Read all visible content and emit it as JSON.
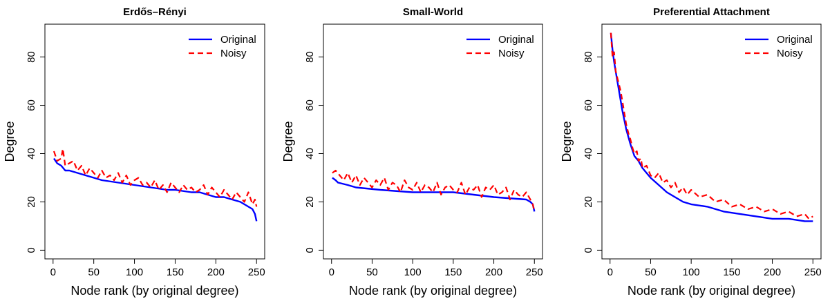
{
  "colors": {
    "original": "#0000ff",
    "noisy": "#ff0000"
  },
  "chart_data": [
    {
      "type": "line",
      "title": "Erdős–Rényi",
      "xlabel": "Node rank (by original degree)",
      "ylabel": "Degree",
      "xlim": [
        0,
        250
      ],
      "ylim": [
        0,
        90
      ],
      "xticks": [
        0,
        50,
        100,
        150,
        200,
        250
      ],
      "yticks": [
        0,
        20,
        40,
        60,
        80
      ],
      "legend_position": "top-right",
      "series": [
        {
          "name": "Original",
          "style": "solid",
          "color": "#0000ff",
          "x": [
            1,
            5,
            10,
            15,
            20,
            30,
            40,
            50,
            60,
            80,
            100,
            120,
            140,
            150,
            170,
            180,
            200,
            210,
            220,
            230,
            240,
            245,
            248,
            250
          ],
          "y": [
            38,
            36,
            35,
            33,
            33,
            32,
            31,
            30,
            29,
            28,
            27,
            26,
            25,
            25,
            24,
            24,
            22,
            22,
            21,
            20,
            18,
            17,
            15,
            12
          ]
        },
        {
          "name": "Noisy",
          "style": "dashed",
          "color": "#ff0000",
          "x": [
            1,
            5,
            10,
            12,
            15,
            20,
            25,
            30,
            35,
            40,
            45,
            50,
            55,
            60,
            65,
            70,
            75,
            80,
            85,
            90,
            95,
            100,
            105,
            110,
            115,
            120,
            125,
            130,
            135,
            140,
            145,
            150,
            155,
            160,
            165,
            170,
            175,
            180,
            185,
            190,
            195,
            200,
            205,
            210,
            215,
            220,
            225,
            230,
            235,
            240,
            245,
            248,
            250
          ],
          "y": [
            41,
            37,
            38,
            42,
            35,
            36,
            37,
            33,
            35,
            31,
            34,
            32,
            30,
            33,
            30,
            31,
            29,
            32,
            28,
            31,
            27,
            29,
            30,
            27,
            28,
            26,
            29,
            25,
            27,
            24,
            28,
            26,
            24,
            27,
            25,
            26,
            24,
            25,
            27,
            23,
            26,
            24,
            22,
            25,
            23,
            21,
            24,
            22,
            20,
            24,
            19,
            21,
            18
          ]
        }
      ]
    },
    {
      "type": "line",
      "title": "Small-World",
      "xlabel": "Node rank (by original degree)",
      "ylabel": "Degree",
      "xlim": [
        0,
        250
      ],
      "ylim": [
        0,
        90
      ],
      "xticks": [
        0,
        50,
        100,
        150,
        200,
        250
      ],
      "yticks": [
        0,
        20,
        40,
        60,
        80
      ],
      "legend_position": "top-right",
      "series": [
        {
          "name": "Original",
          "style": "solid",
          "color": "#0000ff",
          "x": [
            1,
            5,
            8,
            20,
            30,
            60,
            100,
            150,
            200,
            240,
            245,
            248,
            250
          ],
          "y": [
            30,
            29,
            28,
            27,
            26,
            25,
            24,
            24,
            22,
            21,
            20,
            19,
            16
          ]
        },
        {
          "name": "Noisy",
          "style": "dashed",
          "color": "#ff0000",
          "x": [
            1,
            5,
            10,
            15,
            20,
            25,
            30,
            35,
            40,
            45,
            50,
            55,
            60,
            65,
            70,
            75,
            80,
            85,
            90,
            95,
            100,
            105,
            110,
            115,
            120,
            125,
            130,
            135,
            140,
            145,
            150,
            155,
            160,
            165,
            170,
            175,
            180,
            185,
            190,
            195,
            200,
            205,
            210,
            215,
            220,
            225,
            230,
            235,
            240,
            245,
            248,
            250
          ],
          "y": [
            32,
            33,
            31,
            29,
            32,
            28,
            31,
            27,
            30,
            28,
            26,
            29,
            27,
            30,
            25,
            28,
            27,
            24,
            29,
            26,
            25,
            28,
            24,
            27,
            26,
            24,
            28,
            23,
            26,
            27,
            25,
            24,
            28,
            23,
            26,
            25,
            27,
            22,
            26,
            25,
            27,
            23,
            24,
            26,
            21,
            25,
            23,
            22,
            24,
            21,
            19,
            16
          ]
        }
      ]
    },
    {
      "type": "line",
      "title": "Preferential Attachment",
      "xlabel": "Node rank (by original degree)",
      "ylabel": "Degree",
      "xlim": [
        0,
        250
      ],
      "ylim": [
        0,
        90
      ],
      "xticks": [
        0,
        50,
        100,
        150,
        200,
        250
      ],
      "yticks": [
        0,
        20,
        40,
        60,
        80
      ],
      "legend_position": "top-right",
      "series": [
        {
          "name": "Original",
          "style": "solid",
          "color": "#0000ff",
          "x": [
            1,
            3,
            5,
            8,
            10,
            15,
            20,
            25,
            30,
            35,
            40,
            50,
            60,
            70,
            80,
            90,
            100,
            120,
            140,
            160,
            180,
            200,
            220,
            240,
            250
          ],
          "y": [
            90,
            83,
            78,
            72,
            68,
            58,
            50,
            44,
            39,
            37,
            34,
            30,
            27,
            24,
            22,
            20,
            19,
            18,
            16,
            15,
            14,
            13,
            13,
            12,
            12
          ]
        },
        {
          "name": "Noisy",
          "style": "dashed",
          "color": "#ff0000",
          "x": [
            1,
            3,
            5,
            7,
            10,
            13,
            15,
            18,
            20,
            23,
            25,
            28,
            30,
            33,
            35,
            38,
            40,
            45,
            50,
            55,
            60,
            65,
            70,
            75,
            80,
            85,
            90,
            95,
            100,
            110,
            120,
            130,
            140,
            150,
            160,
            170,
            180,
            190,
            200,
            210,
            220,
            230,
            240,
            245,
            250
          ],
          "y": [
            90,
            80,
            82,
            74,
            70,
            66,
            62,
            56,
            52,
            48,
            46,
            42,
            40,
            41,
            37,
            38,
            34,
            35,
            31,
            30,
            32,
            28,
            29,
            26,
            28,
            24,
            26,
            23,
            25,
            22,
            23,
            20,
            21,
            18,
            19,
            17,
            18,
            16,
            17,
            15,
            16,
            14,
            15,
            13,
            14
          ]
        }
      ]
    }
  ]
}
